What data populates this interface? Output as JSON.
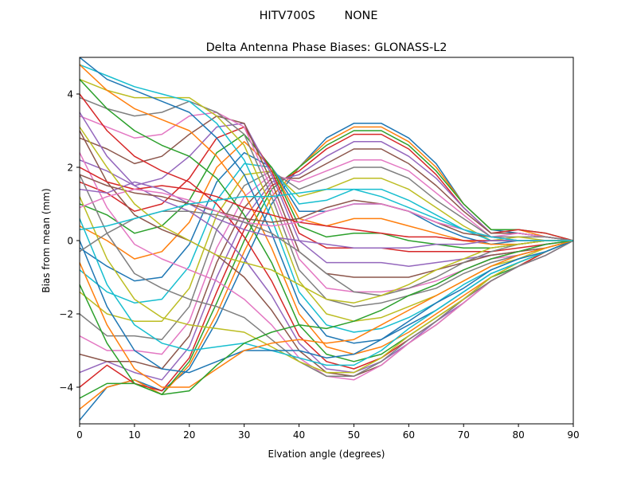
{
  "suptitle": "HITV700S        NONE",
  "chart_data": {
    "type": "line",
    "title": "Delta Antenna Phase Biases: GLONASS-L2",
    "xlabel": "Elvation angle (degrees)",
    "ylabel": "Bias from mean (mm)",
    "xlim": [
      0,
      90
    ],
    "ylim": [
      -5,
      5
    ],
    "xticks": [
      0,
      10,
      20,
      30,
      40,
      50,
      60,
      70,
      80,
      90
    ],
    "yticks": [
      -4,
      -2,
      0,
      2,
      4
    ],
    "grid": false,
    "x": [
      0,
      5,
      10,
      15,
      20,
      25,
      30,
      35,
      40,
      45,
      50,
      55,
      60,
      65,
      70,
      75,
      80,
      85,
      90
    ],
    "colors": [
      "#1f77b4",
      "#ff7f0e",
      "#2ca02c",
      "#d62728",
      "#9467bd",
      "#8c564b",
      "#e377c2",
      "#7f7f7f",
      "#bcbd22",
      "#17becf"
    ],
    "series": [
      {
        "values": [
          -4.9,
          -4.0,
          -3.8,
          -4.1,
          -3.5,
          -2.2,
          -0.6,
          1.0,
          2.0,
          2.8,
          3.2,
          3.2,
          2.8,
          2.1,
          1.0,
          0.3,
          0.2,
          0.1,
          0.0
        ]
      },
      {
        "values": [
          -4.6,
          -4.0,
          -3.8,
          -4.2,
          -3.4,
          -2.0,
          -0.3,
          1.2,
          2.0,
          2.7,
          3.1,
          3.1,
          2.7,
          2.0,
          1.0,
          0.3,
          0.3,
          0.1,
          0.0
        ]
      },
      {
        "values": [
          -4.3,
          -3.9,
          -3.9,
          -4.2,
          -3.3,
          -1.7,
          0.0,
          1.4,
          2.0,
          2.6,
          3.0,
          3.0,
          2.6,
          1.9,
          1.0,
          0.3,
          0.3,
          0.2,
          0.0
        ]
      },
      {
        "values": [
          -4.0,
          -3.4,
          -3.9,
          -4.1,
          -3.2,
          -1.4,
          0.3,
          1.5,
          1.9,
          2.5,
          2.9,
          2.9,
          2.5,
          1.8,
          0.9,
          0.2,
          0.3,
          0.2,
          0.0
        ]
      },
      {
        "values": [
          -3.6,
          -3.3,
          -3.6,
          -3.8,
          -2.9,
          -1.0,
          0.6,
          1.6,
          1.8,
          2.3,
          2.7,
          2.7,
          2.3,
          1.7,
          0.9,
          0.2,
          0.2,
          0.1,
          0.0
        ]
      },
      {
        "values": [
          -3.1,
          -3.3,
          -3.3,
          -3.5,
          -2.6,
          -0.6,
          0.9,
          1.7,
          1.7,
          2.1,
          2.5,
          2.5,
          2.1,
          1.5,
          0.8,
          0.2,
          0.2,
          0.1,
          0.0
        ]
      },
      {
        "values": [
          -2.6,
          -3.0,
          -3.0,
          -3.1,
          -2.2,
          -0.2,
          1.2,
          1.8,
          1.6,
          1.9,
          2.2,
          2.2,
          1.9,
          1.3,
          0.7,
          0.1,
          0.2,
          0.1,
          0.0
        ]
      },
      {
        "values": [
          -2.0,
          -2.6,
          -2.6,
          -2.7,
          -1.8,
          0.3,
          1.5,
          1.9,
          1.4,
          1.7,
          2.0,
          2.0,
          1.7,
          1.1,
          0.6,
          0.1,
          0.1,
          0.1,
          0.0
        ]
      },
      {
        "values": [
          -1.4,
          -2.0,
          -2.2,
          -2.2,
          -1.3,
          0.7,
          1.8,
          1.9,
          1.2,
          1.4,
          1.7,
          1.7,
          1.4,
          0.9,
          0.4,
          0.0,
          0.1,
          0.0,
          0.0
        ]
      },
      {
        "values": [
          -0.8,
          -1.4,
          -1.7,
          -1.6,
          -0.7,
          1.1,
          2.1,
          2.0,
          1.0,
          1.1,
          1.4,
          1.4,
          1.1,
          0.7,
          0.3,
          0.0,
          0.0,
          0.0,
          0.0
        ]
      },
      {
        "values": [
          -0.2,
          -0.7,
          -1.1,
          -1.0,
          -0.1,
          1.6,
          2.4,
          2.0,
          0.8,
          0.8,
          1.0,
          1.0,
          0.8,
          0.4,
          0.1,
          -0.1,
          0.0,
          0.0,
          0.0
        ]
      },
      {
        "values": [
          0.4,
          0.0,
          -0.5,
          -0.3,
          0.5,
          2.0,
          2.7,
          2.0,
          0.6,
          0.4,
          0.6,
          0.6,
          0.4,
          0.2,
          0.0,
          -0.1,
          -0.1,
          0.0,
          0.0
        ]
      },
      {
        "values": [
          1.0,
          0.7,
          0.2,
          0.4,
          1.1,
          2.4,
          2.9,
          2.0,
          0.4,
          0.1,
          0.2,
          0.2,
          0.0,
          -0.1,
          -0.2,
          -0.2,
          -0.1,
          0.0,
          0.0
        ]
      },
      {
        "values": [
          1.6,
          1.3,
          0.8,
          1.0,
          1.7,
          2.8,
          3.1,
          1.9,
          0.2,
          -0.2,
          -0.2,
          -0.2,
          -0.3,
          -0.3,
          -0.3,
          -0.3,
          -0.2,
          -0.1,
          0.0
        ]
      },
      {
        "values": [
          2.2,
          1.9,
          1.5,
          1.7,
          2.3,
          3.1,
          3.2,
          1.8,
          0.0,
          -0.6,
          -0.6,
          -0.6,
          -0.7,
          -0.6,
          -0.5,
          -0.4,
          -0.3,
          -0.1,
          0.0
        ]
      },
      {
        "values": [
          2.8,
          2.5,
          2.1,
          2.3,
          2.9,
          3.4,
          3.2,
          1.6,
          -0.3,
          -0.9,
          -1.0,
          -1.0,
          -1.0,
          -0.8,
          -0.6,
          -0.4,
          -0.3,
          -0.2,
          0.0
        ]
      },
      {
        "values": [
          3.4,
          3.1,
          2.8,
          2.9,
          3.4,
          3.5,
          3.1,
          1.4,
          -0.5,
          -1.3,
          -1.4,
          -1.4,
          -1.3,
          -1.1,
          -0.8,
          -0.5,
          -0.4,
          -0.2,
          0.0
        ]
      },
      {
        "values": [
          3.9,
          3.6,
          3.4,
          3.5,
          3.8,
          3.5,
          2.9,
          1.2,
          -0.8,
          -1.6,
          -1.8,
          -1.7,
          -1.5,
          -1.3,
          -0.9,
          -0.6,
          -0.4,
          -0.2,
          0.0
        ]
      },
      {
        "values": [
          4.4,
          4.1,
          3.9,
          3.9,
          3.9,
          3.4,
          2.6,
          0.9,
          -1.1,
          -2.0,
          -2.2,
          -2.1,
          -1.8,
          -1.5,
          -1.1,
          -0.7,
          -0.5,
          -0.2,
          0.0
        ]
      },
      {
        "values": [
          4.8,
          4.5,
          4.2,
          4.0,
          3.8,
          3.2,
          2.2,
          0.6,
          -1.4,
          -2.3,
          -2.5,
          -2.4,
          -2.1,
          -1.7,
          -1.2,
          -0.8,
          -0.5,
          -0.3,
          0.0
        ]
      },
      {
        "values": [
          5.0,
          4.4,
          4.1,
          3.8,
          3.5,
          2.8,
          1.8,
          0.2,
          -1.7,
          -2.6,
          -2.8,
          -2.7,
          -2.3,
          -1.9,
          -1.4,
          -0.9,
          -0.6,
          -0.3,
          0.0
        ]
      },
      {
        "values": [
          4.8,
          4.1,
          3.6,
          3.3,
          3.0,
          2.3,
          1.3,
          -0.2,
          -2.0,
          -2.9,
          -3.1,
          -2.9,
          -2.5,
          -2.0,
          -1.5,
          -1.0,
          -0.6,
          -0.3,
          0.0
        ]
      },
      {
        "values": [
          4.4,
          3.6,
          3.0,
          2.6,
          2.3,
          1.7,
          0.7,
          -0.6,
          -2.3,
          -3.1,
          -3.3,
          -3.1,
          -2.6,
          -2.1,
          -1.6,
          -1.0,
          -0.7,
          -0.3,
          0.0
        ]
      },
      {
        "values": [
          4.0,
          3.0,
          2.3,
          1.9,
          1.6,
          1.0,
          0.1,
          -1.1,
          -2.6,
          -3.3,
          -3.5,
          -3.2,
          -2.7,
          -2.2,
          -1.6,
          -1.1,
          -0.7,
          -0.3,
          0.0
        ]
      },
      {
        "values": [
          3.5,
          2.3,
          1.5,
          1.1,
          0.8,
          0.3,
          -0.5,
          -1.5,
          -2.8,
          -3.5,
          -3.6,
          -3.3,
          -2.8,
          -2.2,
          -1.7,
          -1.1,
          -0.7,
          -0.4,
          0.0
        ]
      },
      {
        "values": [
          3.0,
          1.6,
          0.7,
          0.3,
          0.0,
          -0.4,
          -1.0,
          -1.9,
          -3.0,
          -3.6,
          -3.7,
          -3.4,
          -2.8,
          -2.3,
          -1.7,
          -1.1,
          -0.7,
          -0.4,
          0.0
        ]
      },
      {
        "values": [
          2.4,
          0.9,
          -0.1,
          -0.5,
          -0.8,
          -1.1,
          -1.6,
          -2.3,
          -3.2,
          -3.7,
          -3.8,
          -3.4,
          -2.8,
          -2.3,
          -1.7,
          -1.1,
          -0.7,
          -0.4,
          0.0
        ]
      },
      {
        "values": [
          1.8,
          0.2,
          -0.9,
          -1.3,
          -1.6,
          -1.8,
          -2.1,
          -2.7,
          -3.3,
          -3.7,
          -3.7,
          -3.3,
          -2.7,
          -2.2,
          -1.6,
          -1.1,
          -0.7,
          -0.4,
          0.0
        ]
      },
      {
        "values": [
          1.2,
          -0.5,
          -1.6,
          -2.1,
          -2.3,
          -2.4,
          -2.5,
          -2.9,
          -3.3,
          -3.6,
          -3.6,
          -3.2,
          -2.6,
          -2.1,
          -1.6,
          -1.0,
          -0.6,
          -0.3,
          0.0
        ]
      },
      {
        "values": [
          0.6,
          -1.2,
          -2.3,
          -2.8,
          -3.0,
          -2.9,
          -2.8,
          -3.0,
          -3.2,
          -3.4,
          -3.4,
          -3.0,
          -2.4,
          -1.9,
          -1.4,
          -0.9,
          -0.6,
          -0.3,
          0.0
        ]
      },
      {
        "values": [
          0.0,
          -1.8,
          -3.0,
          -3.5,
          -3.6,
          -3.3,
          -3.0,
          -3.0,
          -3.0,
          -3.2,
          -3.1,
          -2.7,
          -2.2,
          -1.7,
          -1.3,
          -0.8,
          -0.5,
          -0.3,
          0.0
        ]
      },
      {
        "values": [
          -0.6,
          -2.3,
          -3.5,
          -4.0,
          -4.0,
          -3.5,
          -3.0,
          -2.8,
          -2.7,
          -2.8,
          -2.7,
          -2.3,
          -1.9,
          -1.5,
          -1.1,
          -0.7,
          -0.4,
          -0.2,
          0.0
        ]
      },
      {
        "values": [
          -1.2,
          -2.8,
          -3.9,
          -4.2,
          -4.1,
          -3.4,
          -2.8,
          -2.5,
          -2.3,
          -2.4,
          -2.2,
          -1.9,
          -1.5,
          -1.2,
          -0.8,
          -0.5,
          -0.3,
          -0.1,
          0.0
        ]
      },
      {
        "values": [
          2.0,
          1.6,
          1.4,
          1.5,
          1.4,
          1.2,
          0.9,
          0.7,
          0.5,
          0.4,
          0.3,
          0.2,
          0.1,
          0.1,
          0.0,
          0.0,
          0.0,
          0.0,
          0.0
        ]
      },
      {
        "values": [
          1.4,
          1.3,
          1.6,
          1.4,
          1.0,
          0.6,
          0.3,
          0.1,
          0.0,
          -0.1,
          -0.2,
          -0.2,
          -0.2,
          -0.1,
          -0.1,
          0.0,
          0.0,
          0.0,
          0.0
        ]
      },
      {
        "values": [
          1.8,
          1.5,
          1.3,
          1.2,
          1.0,
          0.8,
          0.6,
          0.5,
          0.6,
          0.9,
          1.1,
          1.0,
          0.8,
          0.5,
          0.2,
          0.1,
          0.0,
          0.0,
          0.0
        ]
      },
      {
        "values": [
          0.9,
          1.2,
          1.4,
          1.3,
          1.1,
          0.8,
          0.5,
          0.4,
          0.5,
          0.8,
          1.0,
          1.0,
          0.8,
          0.5,
          0.3,
          0.1,
          0.0,
          0.0,
          0.0
        ]
      },
      {
        "values": [
          -0.3,
          0.2,
          0.6,
          0.8,
          0.8,
          0.7,
          0.5,
          0.2,
          -0.3,
          -0.9,
          -1.4,
          -1.5,
          -1.3,
          -1.0,
          -0.6,
          -0.3,
          -0.1,
          0.0,
          0.0
        ]
      },
      {
        "values": [
          3.1,
          2.0,
          1.0,
          0.4,
          0.0,
          -0.4,
          -0.6,
          -0.8,
          -1.2,
          -1.6,
          -1.7,
          -1.5,
          -1.2,
          -0.8,
          -0.5,
          -0.2,
          -0.1,
          0.0,
          0.0
        ]
      },
      {
        "values": [
          0.3,
          0.4,
          0.6,
          0.8,
          1.0,
          1.1,
          1.2,
          1.2,
          1.3,
          1.4,
          1.4,
          1.2,
          0.9,
          0.6,
          0.3,
          0.1,
          0.0,
          0.0,
          0.0
        ]
      }
    ]
  }
}
